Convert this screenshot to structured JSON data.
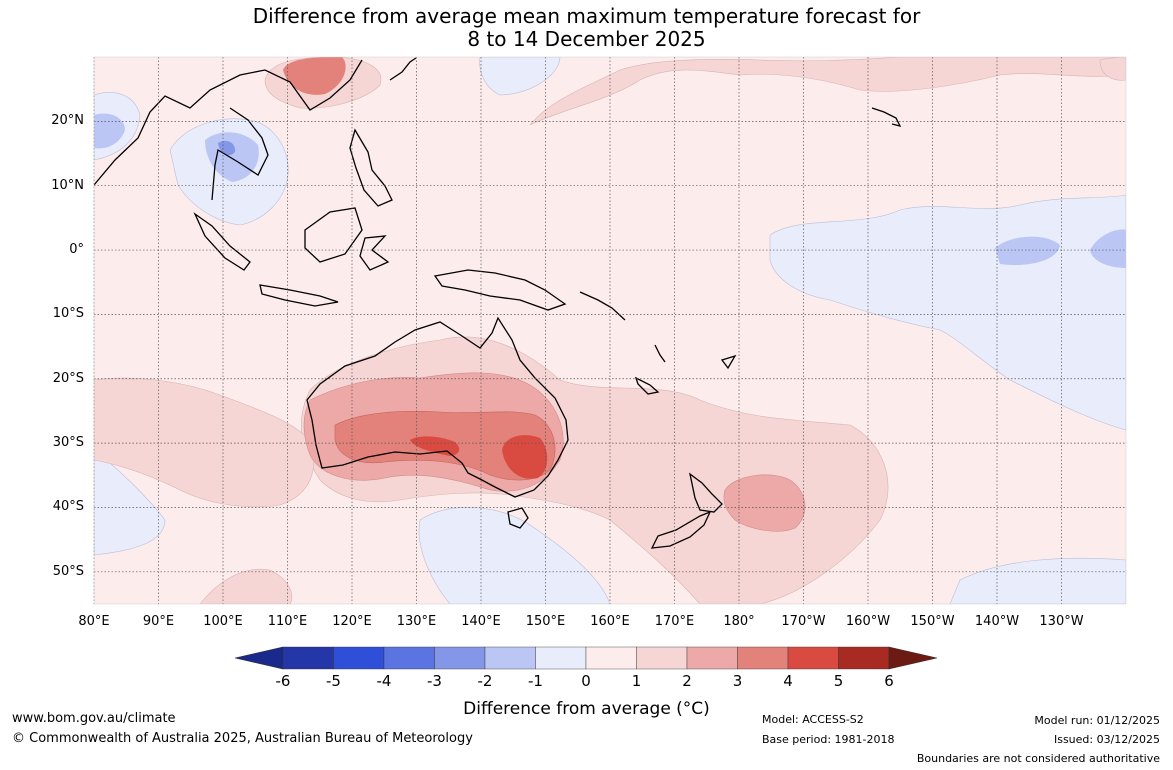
{
  "title": {
    "line1": "Difference from average mean maximum temperature forecast for",
    "line2": "8 to 14 December 2025"
  },
  "map": {
    "lat_labels": [
      "20°N",
      "10°N",
      "0°",
      "10°S",
      "20°S",
      "30°S",
      "40°S",
      "50°S"
    ],
    "lat_values": [
      20,
      10,
      0,
      -10,
      -20,
      -30,
      -40,
      -50
    ],
    "lon_labels": [
      "80°E",
      "90°E",
      "100°E",
      "110°E",
      "120°E",
      "130°E",
      "140°E",
      "150°E",
      "160°E",
      "170°E",
      "180°",
      "170°W",
      "160°W",
      "150°W",
      "140°W",
      "130°W"
    ],
    "lon_values": [
      80,
      90,
      100,
      110,
      120,
      130,
      140,
      150,
      160,
      170,
      180,
      190,
      200,
      210,
      220,
      230
    ],
    "lon_range": [
      80,
      240
    ],
    "lat_range": [
      -55,
      30
    ]
  },
  "colorbar": {
    "tick_labels": [
      "-6",
      "-5",
      "-4",
      "-3",
      "-2",
      "-1",
      "0",
      "1",
      "2",
      "3",
      "4",
      "5",
      "6"
    ],
    "colors": [
      "#1a2a8c",
      "#2536a8",
      "#2f4fd8",
      "#5a75e2",
      "#8396e8",
      "#bcc6f4",
      "#e8ecfb",
      "#fdecec",
      "#f6d5d5",
      "#eda9a7",
      "#e3817b",
      "#d94b40",
      "#a82a22",
      "#6d1a14"
    ],
    "title": "Difference from average (°C)"
  },
  "footer": {
    "website": "www.bom.gov.au/climate",
    "copyright": "© Commonwealth of Australia 2025, Australian Bureau of Meteorology",
    "model": "Model: ACCESS-S2",
    "base_period": "Base period: 1981-2018",
    "model_run": "Model run: 01/12/2025",
    "issued": "Issued: 03/12/2025",
    "disclaimer": "Boundaries are not considered authoritative"
  }
}
